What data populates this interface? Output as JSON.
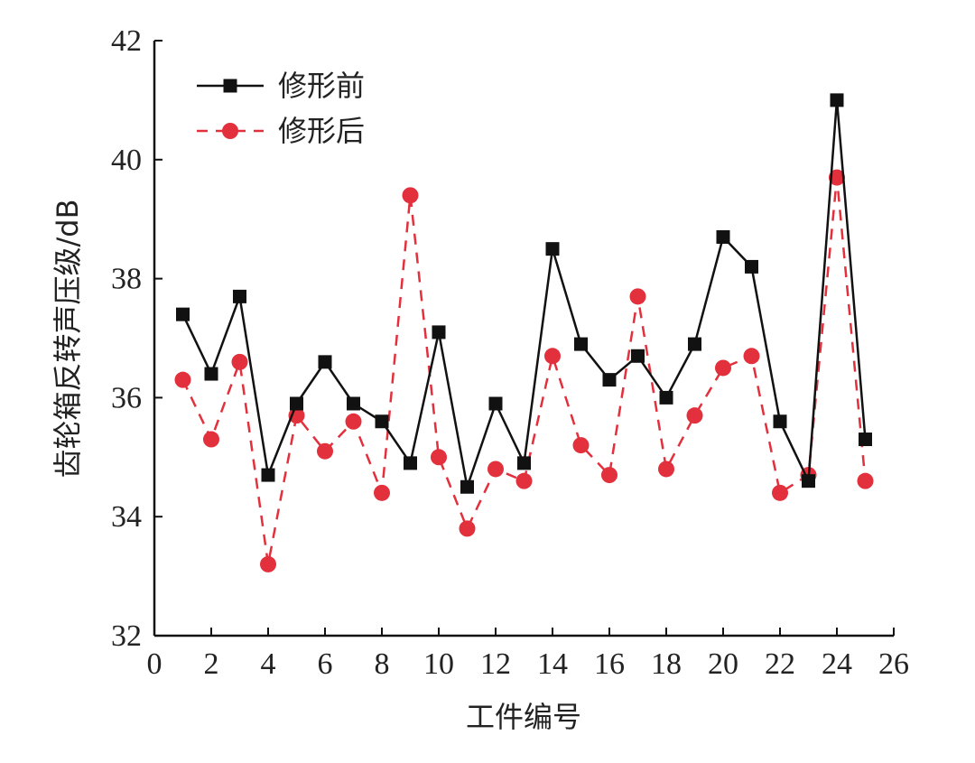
{
  "chart_data": {
    "type": "line",
    "title": "",
    "xlabel": "工件编号",
    "ylabel": "齿轮箱反转声压级/dB",
    "xlim": [
      0,
      26
    ],
    "ylim": [
      32,
      42
    ],
    "xticks": [
      0,
      2,
      4,
      6,
      8,
      10,
      12,
      14,
      16,
      18,
      20,
      22,
      24,
      26
    ],
    "yticks": [
      32,
      34,
      36,
      38,
      40,
      42
    ],
    "grid": false,
    "legend_position": "top-left",
    "x": [
      1,
      2,
      3,
      4,
      5,
      6,
      7,
      8,
      9,
      10,
      11,
      12,
      13,
      14,
      15,
      16,
      17,
      18,
      19,
      20,
      21,
      22,
      23,
      24,
      25
    ],
    "series": [
      {
        "name": "修形前",
        "color": "#111111",
        "line_style": "solid",
        "marker": "square",
        "values": [
          37.4,
          36.4,
          37.7,
          34.7,
          35.9,
          36.6,
          35.9,
          35.6,
          34.9,
          37.1,
          34.5,
          35.9,
          34.9,
          38.5,
          36.9,
          36.3,
          36.7,
          36.0,
          36.9,
          38.7,
          38.2,
          35.6,
          34.6,
          41.0,
          35.3
        ]
      },
      {
        "name": "修形后",
        "color": "#e2303c",
        "line_style": "dashed",
        "marker": "circle",
        "values": [
          36.3,
          35.3,
          36.6,
          33.2,
          35.7,
          35.1,
          35.6,
          34.4,
          39.4,
          35.0,
          33.8,
          34.8,
          34.6,
          36.7,
          35.2,
          34.7,
          37.7,
          34.8,
          35.7,
          36.5,
          36.7,
          34.4,
          34.7,
          39.7,
          34.6
        ]
      }
    ]
  }
}
